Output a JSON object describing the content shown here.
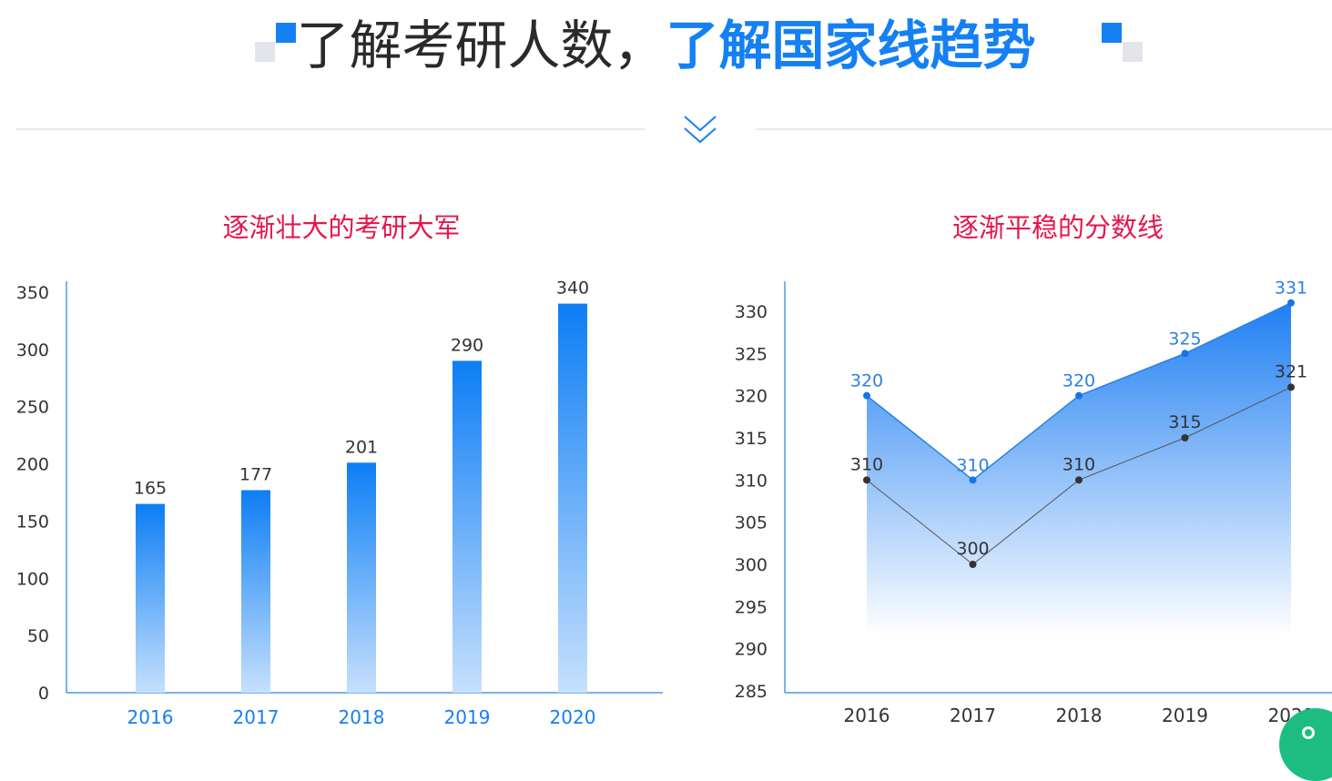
{
  "header": {
    "title_part1": "了解考研人数，",
    "title_part2": "了解国家线趋势"
  },
  "colors": {
    "accent": "#1480f4",
    "chart_title": "#e5174d",
    "bar_top": "#0d7ef5",
    "bar_bottom": "#c6e0fd",
    "line_blue": "#2c7fe8",
    "line_dark": "#333333"
  },
  "chart_data": [
    {
      "type": "bar",
      "title": "逐渐壮大的考研大军",
      "xlabel": "",
      "ylabel": "",
      "categories": [
        "2016",
        "2017",
        "2018",
        "2019",
        "2020"
      ],
      "values": [
        165,
        177,
        201,
        290,
        340
      ],
      "ylim": [
        0,
        350
      ],
      "yticks": [
        0,
        50,
        100,
        150,
        200,
        250,
        300,
        350
      ],
      "grid": false,
      "legend": "none"
    },
    {
      "type": "line",
      "title": "逐渐平稳的分数线",
      "xlabel": "",
      "ylabel": "",
      "categories": [
        "2016",
        "2017",
        "2018",
        "2019",
        "2020"
      ],
      "series": [
        {
          "values": [
            320,
            310,
            320,
            325,
            331
          ],
          "fill": "area"
        },
        {
          "values": [
            310,
            300,
            310,
            315,
            321
          ]
        }
      ],
      "ylim": [
        285,
        330
      ],
      "yticks": [
        285,
        290,
        295,
        300,
        305,
        310,
        315,
        320,
        325,
        330
      ],
      "grid": false,
      "legend": "none"
    }
  ]
}
